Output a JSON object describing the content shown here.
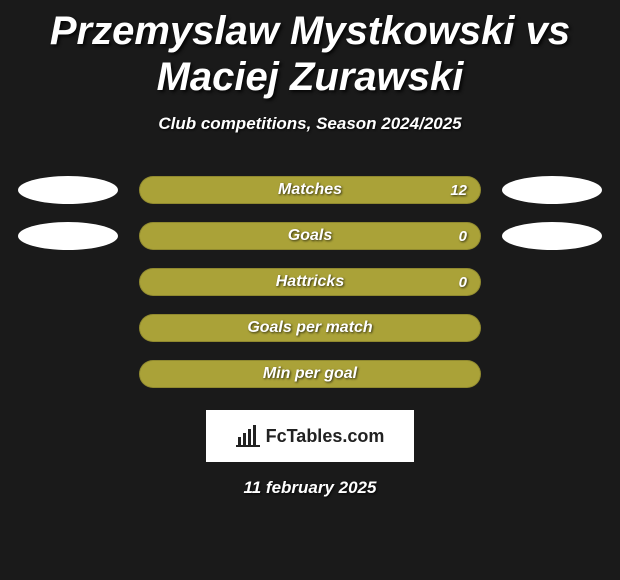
{
  "title": "Przemyslaw Mystkowski vs Maciej Zurawski",
  "title_fontsize": 40,
  "subtitle": "Club competitions, Season 2024/2025",
  "subtitle_fontsize": 17,
  "background_color": "#1a1a1a",
  "text_color": "#ffffff",
  "ellipse_color": "#ffffff",
  "bars": [
    {
      "label": "Matches",
      "value": "12",
      "color": "#aaa238",
      "show_left_ellipse": true,
      "show_right_ellipse": true,
      "show_value": true
    },
    {
      "label": "Goals",
      "value": "0",
      "color": "#aaa238",
      "show_left_ellipse": true,
      "show_right_ellipse": true,
      "show_value": true
    },
    {
      "label": "Hattricks",
      "value": "0",
      "color": "#aaa238",
      "show_left_ellipse": false,
      "show_right_ellipse": false,
      "show_value": true
    },
    {
      "label": "Goals per match",
      "value": "",
      "color": "#aaa238",
      "show_left_ellipse": false,
      "show_right_ellipse": false,
      "show_value": false
    },
    {
      "label": "Min per goal",
      "value": "",
      "color": "#aaa238",
      "show_left_ellipse": false,
      "show_right_ellipse": false,
      "show_value": false
    }
  ],
  "logo_text": "FcTables.com",
  "date": "11 february 2025"
}
